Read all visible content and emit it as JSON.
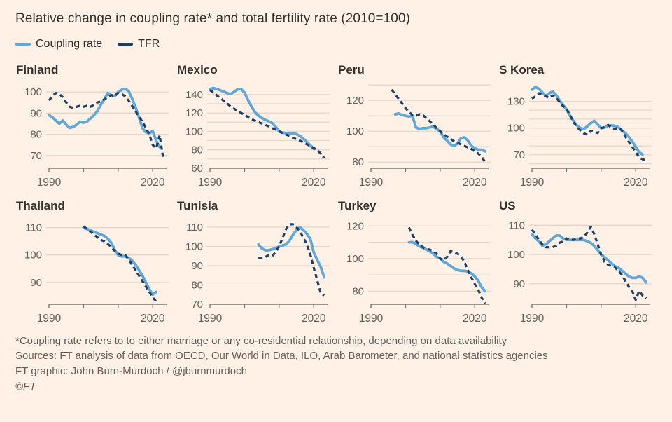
{
  "header": {
    "title": "Relative change in coupling rate* and total fertility rate (2010=100)"
  },
  "legend": {
    "items": [
      {
        "label": "Coupling rate",
        "series": "coupling"
      },
      {
        "label": "TFR",
        "series": "tfr"
      }
    ]
  },
  "colors": {
    "background": "#FFF1E5",
    "coupling": "#5FA8D8",
    "tfr": "#1F4066",
    "gridline": "#E5D8C8",
    "axis": "#7E776E",
    "axis_text": "#66605C",
    "title_text": "#33302E"
  },
  "footer": {
    "note": "*Coupling rate refers to to either marriage or any co-residential relationship, depending on data availability",
    "sources": "Sources: FT analysis of data from OECD, Our World in Data, ILO, Arab Barometer, and national statistics agencies",
    "credit": "FT graphic: John Burn-Murdoch / @jburnmurdoch",
    "copyright": "©FT"
  },
  "chart_data": {
    "type": "line",
    "title": "Relative change in coupling rate* and total fertility rate (2010=100)",
    "legend_position": "top-left",
    "grid": true,
    "series_styles": {
      "coupling": "solid light blue",
      "tfr": "dashed dark navy"
    },
    "panels": [
      {
        "title": "Finland",
        "xlim": [
          1990,
          2024
        ],
        "ylim": [
          64,
          104
        ],
        "xticks": [
          1990,
          2000,
          2010,
          2020
        ],
        "xtick_labels": [
          "1990",
          "",
          "",
          "2020"
        ],
        "gridlines": [
          70,
          80,
          90,
          100
        ],
        "yticks": [
          100,
          90,
          80,
          70
        ],
        "series": {
          "coupling": {
            "start_year": 1990,
            "values": [
              89,
              88,
              86.5,
              85,
              86.5,
              84.5,
              83,
              83.5,
              84.5,
              86,
              85.5,
              86,
              87.5,
              89,
              91,
              94,
              96.5,
              99.5,
              98.5,
              98,
              100,
              101,
              101.5,
              100.5,
              97,
              93,
              88,
              83,
              81,
              80.5,
              81.5,
              77,
              74
            ]
          },
          "tfr": {
            "start_year": 1990,
            "values": [
              96,
              98,
              99.5,
              99,
              97.5,
              95,
              93,
              92.5,
              93,
              93.5,
              93,
              93.5,
              93,
              94,
              95,
              95.5,
              96.5,
              97.5,
              98.5,
              98,
              99.5,
              99,
              98,
              96,
              93.5,
              91,
              88.5,
              86,
              83,
              80,
              75,
              73.5,
              79.5,
              69
            ]
          }
        }
      },
      {
        "title": "Mexico",
        "xlim": [
          1990,
          2024
        ],
        "ylim": [
          60,
          152
        ],
        "xticks": [
          1990,
          2000,
          2010,
          2020
        ],
        "xtick_labels": [
          "1990",
          "",
          "",
          "2020"
        ],
        "gridlines": [
          70,
          80,
          90,
          100,
          110,
          120,
          130,
          140
        ],
        "yticks": [
          140,
          120,
          100,
          80,
          60
        ],
        "series": {
          "coupling": {
            "start_year": 1990,
            "values": [
              146,
              147,
              146,
              144.5,
              143,
              141.5,
              140.5,
              143,
              145.5,
              146,
              142,
              134,
              127,
              121,
              117,
              114.5,
              112.5,
              111,
              109,
              105,
              100,
              98.5,
              98,
              97.5,
              98,
              97,
              95,
              92,
              88.5,
              85,
              81
            ]
          },
          "tfr": {
            "start_year": 1990,
            "values": [
              145,
              142,
              139,
              136,
              133,
              130,
              127,
              124.5,
              122,
              120,
              118,
              115.5,
              113.5,
              111.5,
              110,
              108.5,
              107,
              105.5,
              103.5,
              102,
              100,
              98,
              96.5,
              95,
              93,
              91.5,
              90,
              88,
              86,
              84,
              82,
              80,
              76,
              71
            ]
          }
        }
      },
      {
        "title": "Peru",
        "xlim": [
          1990,
          2024
        ],
        "ylim": [
          76,
          131
        ],
        "xticks": [
          1990,
          2000,
          2010,
          2020
        ],
        "xtick_labels": [
          "1990",
          "",
          "",
          "2020"
        ],
        "gridlines": [
          80,
          90,
          100,
          110,
          120,
          130
        ],
        "yticks": [
          120,
          100,
          80
        ],
        "series": {
          "coupling": {
            "start_year": 1997,
            "values": [
              111,
              111.5,
              110.5,
              110,
              109.5,
              110,
              102.5,
              101.5,
              102,
              102,
              102.5,
              103,
              101.5,
              100,
              96,
              94,
              91.5,
              90.5,
              92,
              95.5,
              96,
              94,
              90.5,
              89,
              88,
              88,
              87
            ]
          },
          "tfr": {
            "start_year": 1996,
            "values": [
              127,
              124,
              121,
              118,
              115,
              112.5,
              110.5,
              110,
              111,
              110.5,
              108.5,
              106.5,
              104.5,
              102,
              100,
              98,
              96.5,
              95,
              93.5,
              92.5,
              91.5,
              90.5,
              89.5,
              88.5,
              87,
              85.5,
              83.5,
              80
            ]
          }
        }
      },
      {
        "title": "S Korea",
        "xlim": [
          1990,
          2024
        ],
        "ylim": [
          55,
          150
        ],
        "xticks": [
          1990,
          2000,
          2010,
          2020
        ],
        "xtick_labels": [
          "1990",
          "",
          "",
          "2020"
        ],
        "gridlines": [
          60,
          70,
          80,
          90,
          100,
          110,
          120,
          130
        ],
        "yticks": [
          130,
          100,
          70
        ],
        "series": {
          "coupling": {
            "start_year": 1990,
            "values": [
              143,
              146,
              144,
              140,
              136,
              139,
              141,
              137,
              131,
              126,
              121,
              114,
              108,
              103,
              100,
              99,
              102,
              105.5,
              108,
              104,
              100,
              100.5,
              102.5,
              103,
              102.5,
              101,
              97,
              94.5,
              90,
              85,
              79,
              73,
              70.5
            ]
          },
          "tfr": {
            "start_year": 1990,
            "values": [
              133,
              135.5,
              139,
              137.5,
              135.5,
              134,
              136.5,
              134,
              129,
              124.5,
              121.5,
              114,
              107,
              101,
              97.5,
              94,
              92.5,
              97,
              95.5,
              94.5,
              100,
              101,
              103.5,
              100.5,
              99,
              100.5,
              97.5,
              90.5,
              84.5,
              79,
              73,
              67.5,
              65,
              64
            ]
          }
        }
      },
      {
        "title": "Thailand",
        "xlim": [
          1990,
          2024
        ],
        "ylim": [
          82,
          113
        ],
        "xticks": [
          1990,
          2000,
          2010,
          2020
        ],
        "xtick_labels": [
          "1990",
          "",
          "",
          "2020"
        ],
        "gridlines": [
          90,
          100,
          110
        ],
        "yticks": [
          110,
          100,
          90
        ],
        "series": {
          "coupling": {
            "start_year": 2000,
            "values": [
              110,
              109.5,
              109,
              108.5,
              108,
              107.5,
              107,
              106,
              104.5,
              102,
              100,
              99.5,
              99.5,
              99,
              98,
              96.5,
              94.5,
              92.5,
              90,
              87.5,
              85.5,
              86.5
            ]
          },
          "tfr": {
            "start_year": 2000,
            "values": [
              110.5,
              109.5,
              108.5,
              107.5,
              106.5,
              105.5,
              105,
              104,
              103,
              101.5,
              100.5,
              100,
              100,
              98.5,
              96.5,
              94.5,
              92.5,
              90.5,
              88.5,
              86.5,
              84.5,
              83
            ]
          }
        }
      },
      {
        "title": "Tunisia",
        "xlim": [
          1990,
          2024
        ],
        "ylim": [
          70,
          114
        ],
        "xticks": [
          1990,
          2000,
          2010,
          2020
        ],
        "xtick_labels": [
          "1990",
          "",
          "",
          "2020"
        ],
        "gridlines": [
          80,
          90,
          100,
          110
        ],
        "yticks": [
          110,
          100,
          90,
          80,
          70
        ],
        "series": {
          "coupling": {
            "start_year": 2004,
            "values": [
              101,
              99,
              98,
              98,
              98.5,
              99,
              100,
              100.5,
              101,
              103,
              106,
              108.5,
              110,
              108.5,
              106.5,
              104,
              97,
              93,
              89.5,
              84
            ]
          },
          "tfr": {
            "start_year": 2004,
            "values": [
              94,
              94,
              94.5,
              95.5,
              95,
              97,
              100,
              104.5,
              109,
              111.5,
              111.5,
              110,
              108,
              104.5,
              101,
              96,
              89,
              82.5,
              76,
              74.5
            ]
          }
        }
      },
      {
        "title": "Turkey",
        "xlim": [
          1990,
          2024
        ],
        "ylim": [
          72,
          124
        ],
        "xticks": [
          1990,
          2000,
          2010,
          2020
        ],
        "xtick_labels": [
          "1990",
          "",
          "",
          "2020"
        ],
        "gridlines": [
          80,
          90,
          100,
          110,
          120
        ],
        "yticks": [
          120,
          100,
          80
        ],
        "series": {
          "coupling": {
            "start_year": 2001,
            "values": [
              110,
              110,
              109,
              107.5,
              106.5,
              105.5,
              104.5,
              103,
              101,
              100,
              98,
              97,
              95.5,
              94,
              93,
              92.5,
              92.5,
              92,
              91,
              89,
              86.5,
              82.5,
              80
            ]
          },
          "tfr": {
            "start_year": 2001,
            "values": [
              119,
              114.5,
              111,
              108.5,
              107,
              106,
              105.5,
              104.5,
              103,
              100,
              99,
              101,
              104.5,
              104,
              103,
              101.5,
              98,
              93,
              88.5,
              84.5,
              81,
              76,
              72.5
            ]
          }
        }
      },
      {
        "title": "US",
        "xlim": [
          1990,
          2024
        ],
        "ylim": [
          83,
          112
        ],
        "xticks": [
          1990,
          2000,
          2010,
          2020
        ],
        "xtick_labels": [
          "1990",
          "",
          "",
          "2020"
        ],
        "gridlines": [
          90,
          100,
          110
        ],
        "yticks": [
          110,
          100,
          90
        ],
        "series": {
          "coupling": {
            "start_year": 1990,
            "values": [
              107,
              105.5,
              104.5,
              103,
              103.5,
              104.5,
              105.5,
              106.5,
              106.5,
              105.5,
              105,
              105,
              105,
              105,
              105,
              105,
              104.5,
              104,
              103,
              101.5,
              100,
              99,
              98,
              97,
              96,
              95.5,
              94.5,
              93.5,
              92.5,
              92,
              92,
              92.5,
              92,
              90.5
            ]
          },
          "tfr": {
            "start_year": 1990,
            "values": [
              108.5,
              107,
              105,
              103.5,
              102.5,
              102.5,
              102.5,
              103,
              104,
              104.5,
              105.5,
              105,
              105,
              105.5,
              105.5,
              106,
              107.5,
              109.5,
              107,
              103.5,
              100,
              97.5,
              96.5,
              96,
              95.5,
              94.5,
              93,
              91,
              89,
              87.5,
              84.5,
              87.5,
              86,
              85
            ]
          }
        }
      }
    ]
  }
}
